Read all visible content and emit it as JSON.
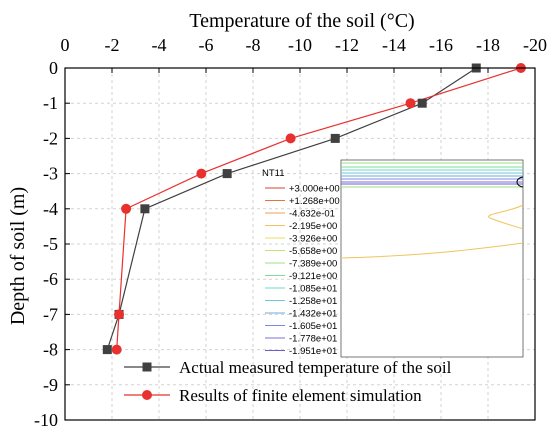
{
  "chart_data": {
    "type": "line",
    "title": "",
    "xlabel": "Temperature of the soil (°C)",
    "ylabel": "Depth of soil (m)",
    "xlim": [
      0,
      -20
    ],
    "ylim": [
      -10,
      0
    ],
    "x_axis_position": "top",
    "x_ticks": [
      "0",
      "-2",
      "-4",
      "-6",
      "-8",
      "-10",
      "-12",
      "-14",
      "-16",
      "-18",
      "-20"
    ],
    "y_ticks": [
      "0",
      "-1",
      "-2",
      "-3",
      "-4",
      "-5",
      "-6",
      "-7",
      "-8",
      "-9",
      "-10"
    ],
    "grid": true,
    "legend_position": "bottom-right",
    "series": [
      {
        "name": "Actual measured temperature of the soil",
        "color": "#404040",
        "marker": "square",
        "points": [
          {
            "x": -17.5,
            "y": 0
          },
          {
            "x": -15.2,
            "y": -1
          },
          {
            "x": -11.5,
            "y": -2
          },
          {
            "x": -6.9,
            "y": -3
          },
          {
            "x": -3.4,
            "y": -4
          },
          {
            "x": -2.3,
            "y": -7
          },
          {
            "x": -1.8,
            "y": -8
          }
        ]
      },
      {
        "name": "Results of finite element simulation",
        "color": "#e8312f",
        "marker": "circle",
        "points": [
          {
            "x": -19.4,
            "y": 0
          },
          {
            "x": -14.7,
            "y": -1
          },
          {
            "x": -9.6,
            "y": -2
          },
          {
            "x": -5.8,
            "y": -3
          },
          {
            "x": -2.6,
            "y": -4
          },
          {
            "x": -2.3,
            "y": -7
          },
          {
            "x": -2.2,
            "y": -8
          }
        ]
      }
    ],
    "inset": {
      "title": "NT11",
      "legend_values": [
        "+3.000e+00",
        "+1.268e+00",
        "-4.632e-01",
        "-2.195e+00",
        "-3.926e+00",
        "-5.658e+00",
        "-7.389e+00",
        "-9.121e+00",
        "-1.085e+01",
        "-1.258e+01",
        "-1.432e+01",
        "-1.605e+01",
        "-1.778e+01",
        "-1.951e+01"
      ],
      "legend_colors": [
        "#d94030",
        "#e8743a",
        "#eea24c",
        "#f0c35c",
        "#e6dd6a",
        "#c4e27a",
        "#9ddf86",
        "#7edb9c",
        "#6ed8c4",
        "#6cc8de",
        "#6fa9e0",
        "#7a8ddc",
        "#7e72d4",
        "#6e5fc8"
      ]
    }
  }
}
